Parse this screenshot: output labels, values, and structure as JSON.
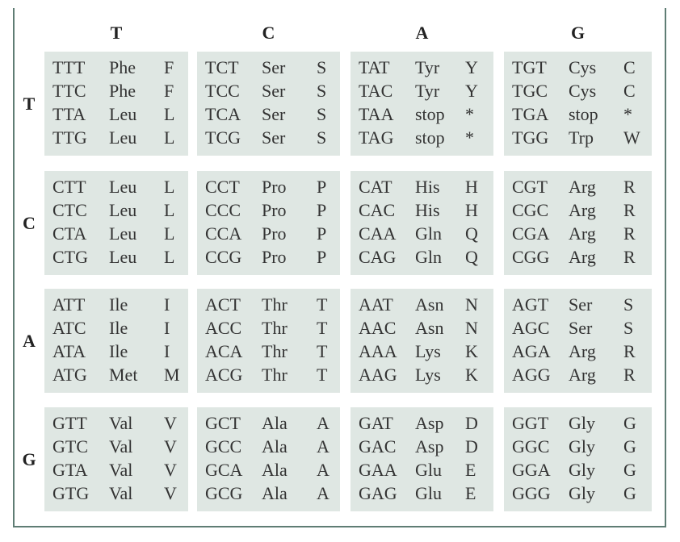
{
  "table": {
    "col_headers": [
      "T",
      "C",
      "A",
      "G"
    ],
    "row_headers": [
      "T",
      "C",
      "A",
      "G"
    ],
    "blocks": [
      [
        [
          [
            "TTT",
            "Phe",
            "F"
          ],
          [
            "TTC",
            "Phe",
            "F"
          ],
          [
            "TTA",
            "Leu",
            "L"
          ],
          [
            "TTG",
            "Leu",
            "L"
          ]
        ],
        [
          [
            "TCT",
            "Ser",
            "S"
          ],
          [
            "TCC",
            "Ser",
            "S"
          ],
          [
            "TCA",
            "Ser",
            "S"
          ],
          [
            "TCG",
            "Ser",
            "S"
          ]
        ],
        [
          [
            "TAT",
            "Tyr",
            "Y"
          ],
          [
            "TAC",
            "Tyr",
            "Y"
          ],
          [
            "TAA",
            "stop",
            "*"
          ],
          [
            "TAG",
            "stop",
            "*"
          ]
        ],
        [
          [
            "TGT",
            "Cys",
            "C"
          ],
          [
            "TGC",
            "Cys",
            "C"
          ],
          [
            "TGA",
            "stop",
            "*"
          ],
          [
            "TGG",
            "Trp",
            "W"
          ]
        ]
      ],
      [
        [
          [
            "CTT",
            "Leu",
            "L"
          ],
          [
            "CTC",
            "Leu",
            "L"
          ],
          [
            "CTA",
            "Leu",
            "L"
          ],
          [
            "CTG",
            "Leu",
            "L"
          ]
        ],
        [
          [
            "CCT",
            "Pro",
            "P"
          ],
          [
            "CCC",
            "Pro",
            "P"
          ],
          [
            "CCA",
            "Pro",
            "P"
          ],
          [
            "CCG",
            "Pro",
            "P"
          ]
        ],
        [
          [
            "CAT",
            "His",
            "H"
          ],
          [
            "CAC",
            "His",
            "H"
          ],
          [
            "CAA",
            "Gln",
            "Q"
          ],
          [
            "CAG",
            "Gln",
            "Q"
          ]
        ],
        [
          [
            "CGT",
            "Arg",
            "R"
          ],
          [
            "CGC",
            "Arg",
            "R"
          ],
          [
            "CGA",
            "Arg",
            "R"
          ],
          [
            "CGG",
            "Arg",
            "R"
          ]
        ]
      ],
      [
        [
          [
            "ATT",
            "Ile",
            "I"
          ],
          [
            "ATC",
            "Ile",
            "I"
          ],
          [
            "ATA",
            "Ile",
            "I"
          ],
          [
            "ATG",
            "Met",
            "M"
          ]
        ],
        [
          [
            "ACT",
            "Thr",
            "T"
          ],
          [
            "ACC",
            "Thr",
            "T"
          ],
          [
            "ACA",
            "Thr",
            "T"
          ],
          [
            "ACG",
            "Thr",
            "T"
          ]
        ],
        [
          [
            "AAT",
            "Asn",
            "N"
          ],
          [
            "AAC",
            "Asn",
            "N"
          ],
          [
            "AAA",
            "Lys",
            "K"
          ],
          [
            "AAG",
            "Lys",
            "K"
          ]
        ],
        [
          [
            "AGT",
            "Ser",
            "S"
          ],
          [
            "AGC",
            "Ser",
            "S"
          ],
          [
            "AGA",
            "Arg",
            "R"
          ],
          [
            "AGG",
            "Arg",
            "R"
          ]
        ]
      ],
      [
        [
          [
            "GTT",
            "Val",
            "V"
          ],
          [
            "GTC",
            "Val",
            "V"
          ],
          [
            "GTA",
            "Val",
            "V"
          ],
          [
            "GTG",
            "Val",
            "V"
          ]
        ],
        [
          [
            "GCT",
            "Ala",
            "A"
          ],
          [
            "GCC",
            "Ala",
            "A"
          ],
          [
            "GCA",
            "Ala",
            "A"
          ],
          [
            "GCG",
            "Ala",
            "A"
          ]
        ],
        [
          [
            "GAT",
            "Asp",
            "D"
          ],
          [
            "GAC",
            "Asp",
            "D"
          ],
          [
            "GAA",
            "Glu",
            "E"
          ],
          [
            "GAG",
            "Glu",
            "E"
          ]
        ],
        [
          [
            "GGT",
            "Gly",
            "G"
          ],
          [
            "GGC",
            "Gly",
            "G"
          ],
          [
            "GGA",
            "Gly",
            "G"
          ],
          [
            "GGG",
            "Gly",
            "G"
          ]
        ]
      ]
    ]
  }
}
